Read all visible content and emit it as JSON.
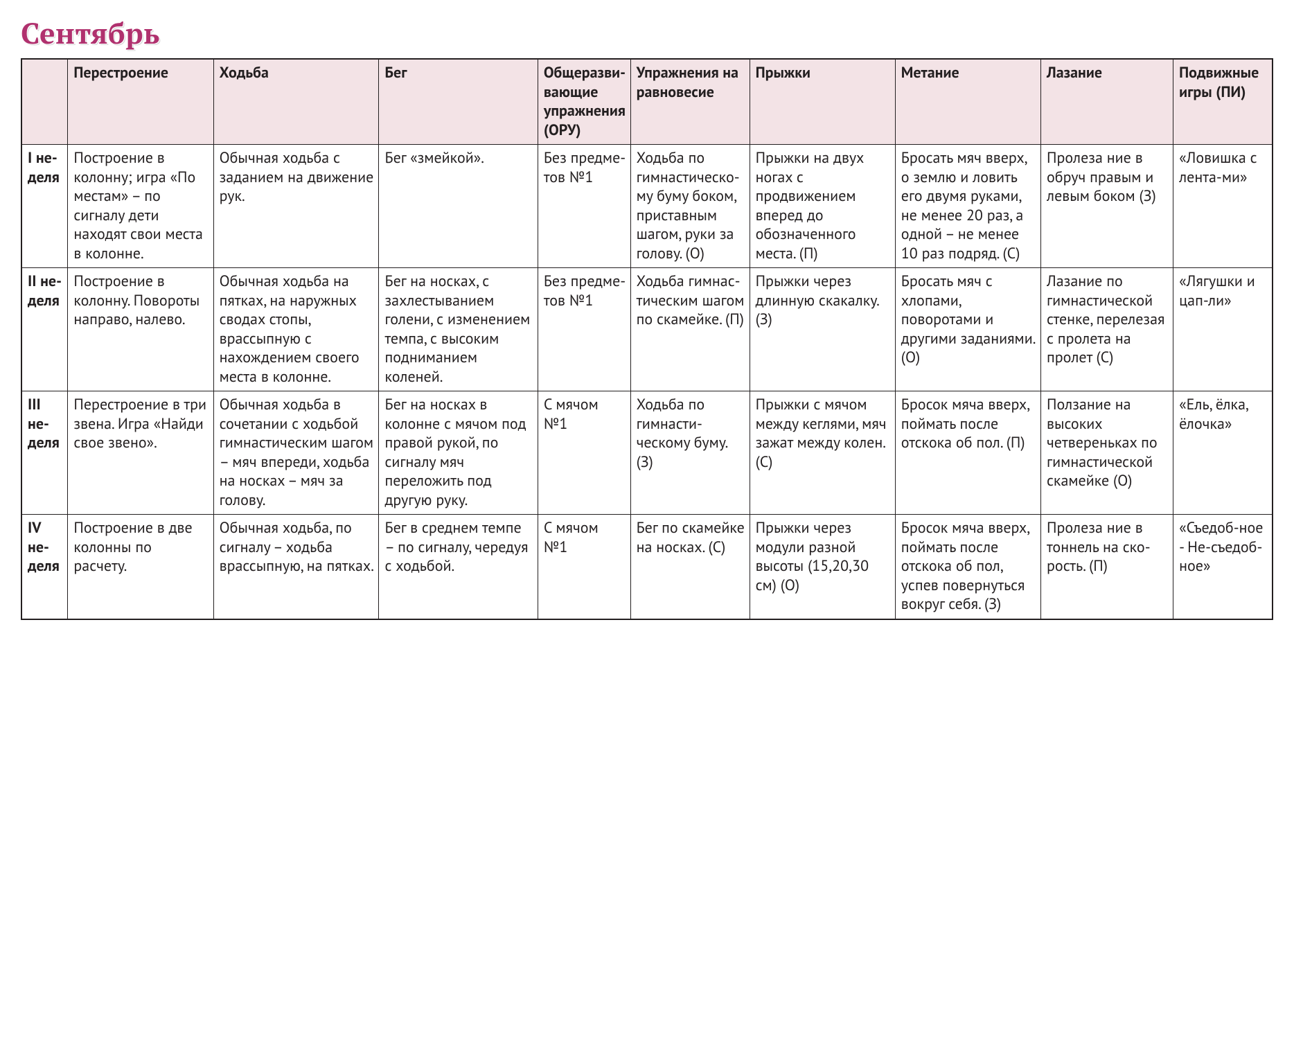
{
  "title": "Сентябрь",
  "title_color": "#b0316e",
  "header_bg": "#f3e3e6",
  "border_color": "#231f20",
  "columns": [
    "",
    "Перестро­ение",
    "Ходьба",
    "Бег",
    "Обще­разви­вающие упраж­нения (ОРУ)",
    "Упраж­нения на равно­весие",
    "Прыжки",
    "Метание",
    "Лазание",
    "Подви­жные игры (ПИ)"
  ],
  "rows": [
    {
      "label": "I не­де­ля",
      "cells": [
        "Построение в колонну; игра «По местам» – по сигналу дети находят свои места в колонне.",
        "Обычная ходь­ба с заданием на движение рук.",
        "Бег «змейкой».",
        "Без предме­тов №1",
        "Ходьба по гимнас­тическо­му буму боком, пристав­ным ша­гом, руки за голову. (О)",
        "Прыжки на двух ногах с продвижени­ем вперед до обозначен­ного места. (П)",
        "Бросать мяч вверх, о зем­лю и ловить его двумя руками, не менее 20 раз, а одной – не менее 10 раз под­ряд. (С)",
        "Пролеза ние в обруч правым и левым боком (З)",
        "«Ло­вишка с лента-ми»"
      ]
    },
    {
      "label": "II не­де­ля",
      "cells": [
        "Построение в колонну. Повороты направо, налево.",
        "Обычная ходь­ба на пятках, на наружных сводах стопы, врассыпную с нахождением своего места в колонне.",
        "Бег на носках, с захлестыванием голени, с из­менением тем­па, с высоким подниманием коленей.",
        "Без предме­тов №1",
        "Ходьба гимнас­тическим шагом по скамейке. (П)",
        "Прыжки че­рез длинную скакалку. (З)",
        "Бросать мяч с хлопами, поворотами и другими заданиями. (О)",
        "Лазание по гимнас­тической стенке, перелезая с пролета на пролет (С)",
        "«Лягуш­ки и цап-ли»"
      ]
    },
    {
      "label": "III не­де­ля",
      "cells": [
        "Перестро­ение в три звена. Игра «Найди свое звено».",
        "Обычная ходь­ба в сочета­нии с ходьбой гимнастическим шагом – мяч впереди, ходьба на носках – мяч за голову.",
        "Бег на носках в колонне с мячом под правой рукой, по сигналу мяч переложить под другую руку.",
        "С мячом №1",
        "Ходьба по гимнасти­ческому буму. (З)",
        "Прыжки с мячом между кеглями, мяч зажат между колен. (С)",
        "Бросок мяча вверх, пой­мать после отскока об пол. (П)",
        "Ползание на высоких четверень­ках по гим­настичес­кой скамей­ке (О)",
        "«Ель, ёлка, ёлочка»"
      ]
    },
    {
      "label": "IV не­де­ля",
      "cells": [
        "Построение в две колонны по расчету.",
        "Обычная ходь­ба, по сигна­лу – ходьба врассыпную, на пятках.",
        "Бег в среднем темпе –  по сигна­лу, чередуя с ходьбой.",
        "С мячом №1",
        "Бег по скамейке на носках. (С)",
        "Прыжки че­рез модули разной высо­ты (15,20,30 см) (О)",
        "Бросок мяча вверх, пой­мать после отскока об пол, успев повернуться вокруг себя. (З)",
        "Пролеза ние  в тон­нель на ско­рость. (П)",
        "«Съе­доб-ное - Не-съе­доб-ное»"
      ]
    }
  ]
}
